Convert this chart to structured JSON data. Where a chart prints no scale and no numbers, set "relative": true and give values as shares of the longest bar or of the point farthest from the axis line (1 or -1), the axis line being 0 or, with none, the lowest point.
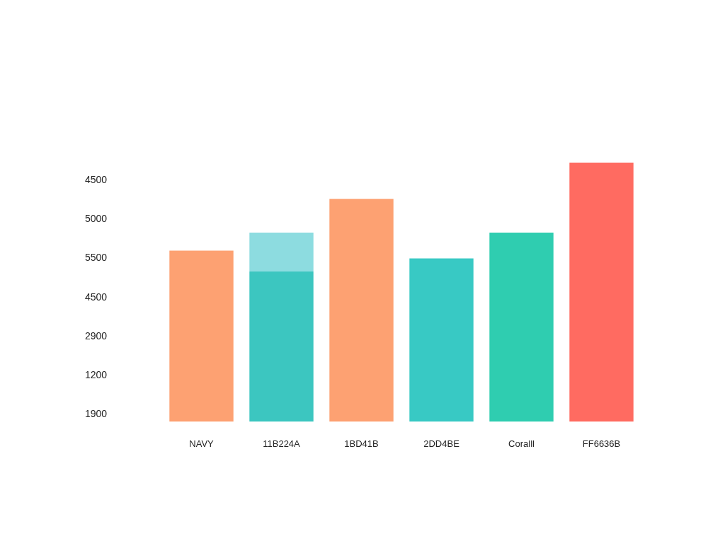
{
  "chart_data": {
    "type": "bar",
    "stacked": true,
    "categories": [
      "NAVY",
      "11B224A",
      "1BD41B",
      "2DD4BE",
      "Coralll",
      "FF6636B"
    ],
    "series": [
      {
        "colors": [
          "#fda172",
          "#3cc6c0",
          "#fda172",
          "#38c9c4",
          "#2fcdb0",
          "#ff6b61"
        ],
        "values": [
          0.66,
          0.58,
          0.86,
          0.63,
          0.73,
          1.0
        ]
      },
      {
        "color": "#8ddce0",
        "values": [
          null,
          0.15,
          null,
          null,
          null,
          null
        ]
      }
    ],
    "relative": true,
    "annotations": [
      "4500",
      "5000",
      "5500",
      "4500",
      "2900",
      "1200",
      "1900"
    ],
    "grid": false,
    "legend": false
  }
}
